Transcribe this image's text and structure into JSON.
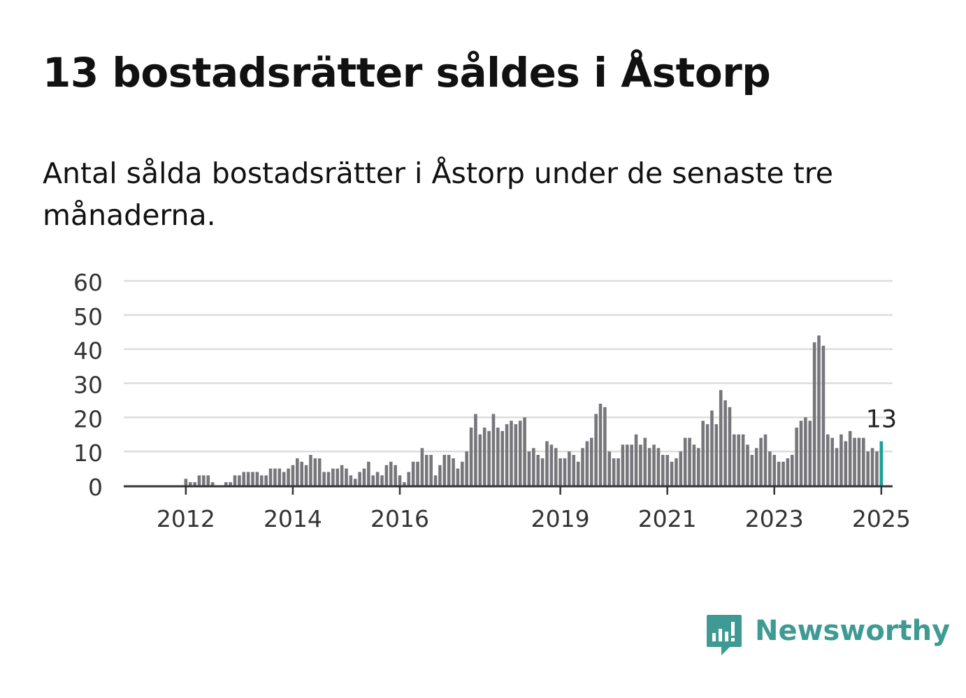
{
  "header": {
    "title": "13 bostadsrätter såldes i Åstorp",
    "subtitle": "Antal sålda bostadsrätter i Åstorp under de senaste tre månaderna."
  },
  "brand": {
    "name": "Newsworthy",
    "icon": "newsworthy-logo-icon",
    "color": "#3f9a94"
  },
  "colors": {
    "bar": "#77767b",
    "highlight": "#17a097",
    "grid": "#dddddd",
    "axis": "#333333"
  },
  "chart_data": {
    "type": "bar",
    "title": "",
    "xlabel": "",
    "ylabel": "",
    "ylim": [
      0,
      60
    ],
    "yticks": [
      "0",
      "10",
      "20",
      "30",
      "40",
      "50",
      "60"
    ],
    "xticks": [
      {
        "label": "2012",
        "index": 6
      },
      {
        "label": "2014",
        "index": 30
      },
      {
        "label": "2016",
        "index": 54
      },
      {
        "label": "2019",
        "index": 90
      },
      {
        "label": "2021",
        "index": 114
      },
      {
        "label": "2023",
        "index": 138
      },
      {
        "label": "2025",
        "index": 162
      }
    ],
    "grid": true,
    "highlight_index": 162,
    "highlight_label": "13",
    "values": [
      0,
      0,
      0,
      0,
      0,
      0,
      2,
      1,
      1,
      3,
      3,
      3,
      1,
      0,
      0,
      1,
      1,
      3,
      3,
      4,
      4,
      4,
      4,
      3,
      3,
      5,
      5,
      5,
      4,
      5,
      6,
      8,
      7,
      6,
      9,
      8,
      8,
      4,
      4,
      5,
      5,
      6,
      5,
      3,
      2,
      4,
      5,
      7,
      3,
      4,
      3,
      6,
      7,
      6,
      3,
      1,
      4,
      7,
      7,
      11,
      9,
      9,
      3,
      6,
      9,
      9,
      8,
      5,
      7,
      10,
      17,
      21,
      15,
      17,
      16,
      21,
      17,
      16,
      18,
      19,
      18,
      19,
      20,
      10,
      11,
      9,
      8,
      13,
      12,
      11,
      8,
      8,
      10,
      9,
      7,
      11,
      13,
      14,
      21,
      24,
      23,
      10,
      8,
      8,
      12,
      12,
      12,
      15,
      12,
      14,
      11,
      12,
      11,
      9,
      9,
      7,
      8,
      10,
      14,
      14,
      12,
      11,
      19,
      18,
      22,
      18,
      28,
      25,
      23,
      15,
      15,
      15,
      12,
      9,
      11,
      14,
      15,
      10,
      9,
      7,
      7,
      8,
      9,
      17,
      19,
      20,
      19,
      42,
      44,
      41,
      15,
      14,
      11,
      15,
      13,
      16,
      14,
      14,
      14,
      10,
      11,
      10,
      13
    ]
  }
}
